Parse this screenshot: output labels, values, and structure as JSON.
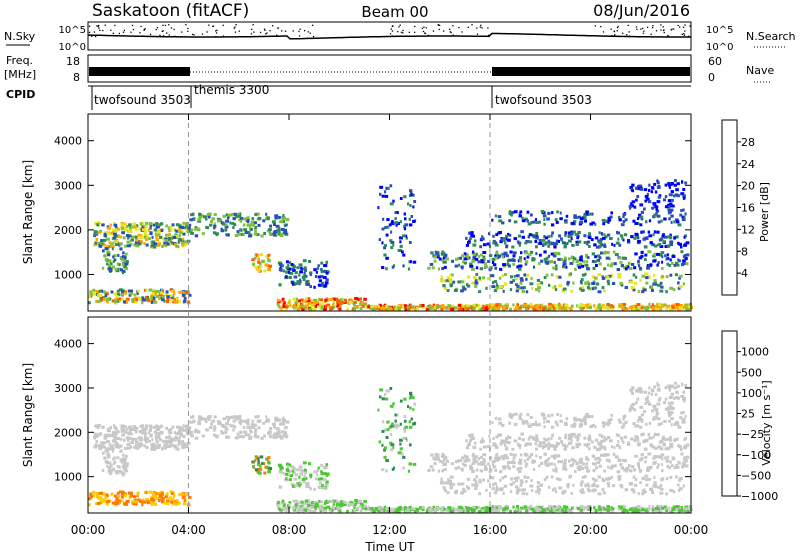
{
  "header": {
    "station": "Saskatoon (fitACF)",
    "beam": "Beam 00",
    "date": "08/Jun/2016"
  },
  "left_labels": {
    "nsky": "N.Sky",
    "freq_l1": "Freq.",
    "freq_l2": "[MHz]",
    "cpid": "CPID"
  },
  "right_labels": {
    "nsearch": "N.Search",
    "nave": "Nave"
  },
  "nsky_ticks": [
    "10^5",
    "10^0"
  ],
  "nsearch_ticks": [
    "10^5",
    "10^0"
  ],
  "freq_ticks": [
    "18",
    "8"
  ],
  "nave_ticks": [
    "60",
    "0"
  ],
  "cpid_segments": [
    {
      "label": "twofsound 3503",
      "start": 0
    },
    {
      "label": "themis 3300",
      "start": 4
    },
    {
      "label": "twofsound 3503",
      "start": 16
    }
  ],
  "chart_data": [
    {
      "type": "heatmap",
      "panel": "power",
      "ylabel": "Slant Range [km]",
      "y_ticks": [
        "4000",
        "3000",
        "2000",
        "1000"
      ],
      "ylim": [
        180,
        4600
      ],
      "xlim": [
        0,
        24
      ],
      "colorbar_label": "Power [dB]",
      "colorbar_ticks": [
        "28",
        "24",
        "20",
        "16",
        "12",
        "8",
        "4"
      ],
      "colors": [
        "#0000ff",
        "#2850b4",
        "#2e8b57",
        "#7fbf3f",
        "#e6e61e",
        "#ffa500",
        "#ff5a00",
        "#ff0000"
      ]
    },
    {
      "type": "heatmap",
      "panel": "velocity",
      "ylabel": "Slant Range [km]",
      "y_ticks": [
        "4000",
        "3000",
        "2000",
        "1000"
      ],
      "ylim": [
        180,
        4600
      ],
      "xlim": [
        0,
        24
      ],
      "xlabel": "Time UT",
      "x_ticks": [
        "00:00",
        "04:00",
        "08:00",
        "12:00",
        "16:00",
        "20:00",
        "00:00"
      ],
      "colorbar_label": "Velocity [m s⁻¹]",
      "colorbar_ticks": [
        "1000",
        "500",
        "100",
        "25",
        "−25",
        "−100",
        "−500",
        "−1000"
      ],
      "colors": [
        "#1e3cc8",
        "#2e8b57",
        "#4cc832",
        "#c8c8c8",
        "#c8c8c8",
        "#ffc800",
        "#ff7800",
        "#ff0000"
      ]
    }
  ]
}
